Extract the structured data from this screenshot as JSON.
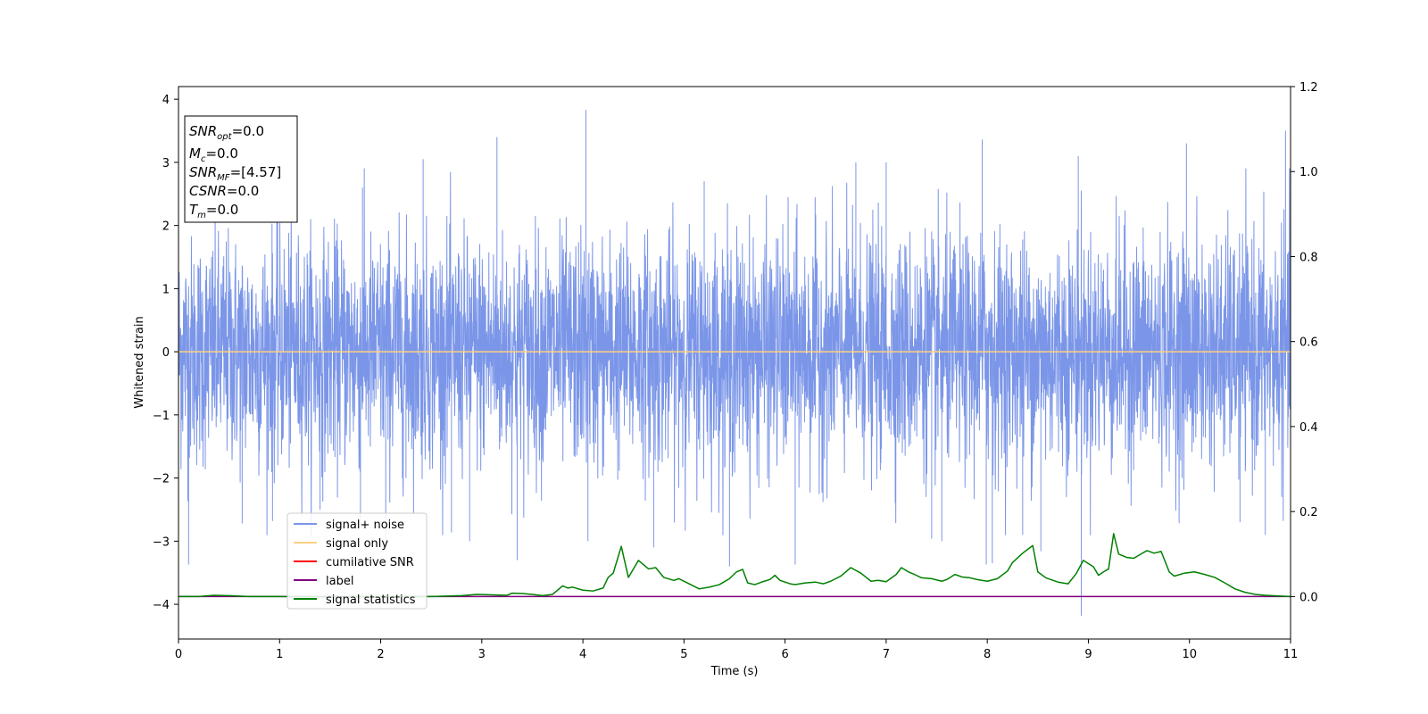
{
  "chart_data": {
    "type": "line",
    "xlabel": "Time (s)",
    "ylabel": "Whitened strain",
    "xlim": [
      0,
      11
    ],
    "ylim": [
      -4.55,
      4.2
    ],
    "ylim_right": [
      -0.1,
      1.2
    ],
    "x_ticks": [
      0,
      1,
      2,
      3,
      4,
      5,
      6,
      7,
      8,
      9,
      10,
      11
    ],
    "y_ticks": [
      -4,
      -3,
      -2,
      -1,
      0,
      1,
      2,
      3,
      4
    ],
    "y_ticks_right": [
      0.0,
      0.2,
      0.4,
      0.6,
      0.8,
      1.0,
      1.2
    ],
    "grid": false,
    "legend_position": "bottom-left",
    "legend": [
      {
        "label": "signal+ noise",
        "color": "#7b96e8"
      },
      {
        "label": "signal only",
        "color": "#ffd080"
      },
      {
        "label": "cumilative SNR",
        "color": "#ff0000"
      },
      {
        "label": "label",
        "color": "#800080"
      },
      {
        "label": "signal statistics",
        "color": "#008000"
      }
    ],
    "annotation": {
      "position": "top-left",
      "lines": [
        {
          "base": "SNR",
          "sub": "opt",
          "value": "=0.0"
        },
        {
          "base": "M",
          "sub": "c",
          "value": "=0.0"
        },
        {
          "base": "SNR",
          "sub": "MF",
          "value": "=[4.57]"
        },
        {
          "base": "CSNR",
          "sub": "",
          "value": "=0.0"
        },
        {
          "base": "T",
          "sub": "m",
          "value": "=0.0"
        }
      ]
    },
    "series": [
      {
        "name": "signal+ noise",
        "axis": "left",
        "color": "#7b96e8",
        "noise_std": 0.9,
        "peaks": [
          [
            0.1,
            -3.37
          ],
          [
            0.63,
            -2.72
          ],
          [
            0.93,
            -2.68
          ],
          [
            1.4,
            -2.5
          ],
          [
            1.8,
            -2.76
          ],
          [
            1.82,
            2.6
          ],
          [
            2.05,
            -3.15
          ],
          [
            2.25,
            -2.0
          ],
          [
            2.42,
            3.05
          ],
          [
            2.7,
            -2.86
          ],
          [
            2.88,
            -3.0
          ],
          [
            3.15,
            3.4
          ],
          [
            3.35,
            -3.3
          ],
          [
            4.03,
            3.83
          ],
          [
            4.05,
            -3.0
          ],
          [
            4.7,
            -3.1
          ],
          [
            5.2,
            2.7
          ],
          [
            5.45,
            -3.4
          ],
          [
            6.1,
            -3.37
          ],
          [
            6.7,
            3.0
          ],
          [
            7.0,
            3.0
          ],
          [
            7.45,
            -2.96
          ],
          [
            7.55,
            -3.0
          ],
          [
            7.95,
            3.36
          ],
          [
            7.99,
            -3.37
          ],
          [
            8.05,
            -3.35
          ],
          [
            8.35,
            -2.9
          ],
          [
            8.53,
            -3.16
          ],
          [
            8.9,
            3.1
          ],
          [
            8.93,
            -4.18
          ],
          [
            9.97,
            3.3
          ],
          [
            10.5,
            -2.7
          ],
          [
            10.75,
            -2.9
          ],
          [
            10.95,
            3.5
          ],
          [
            11.0,
            2.8
          ]
        ]
      },
      {
        "name": "signal only",
        "axis": "left",
        "color": "#ffd080",
        "x": [
          0,
          11
        ],
        "y": [
          0,
          0
        ]
      },
      {
        "name": "label",
        "axis": "right",
        "color": "#800080",
        "x": [
          0,
          11
        ],
        "y": [
          0.0,
          0.0
        ]
      },
      {
        "name": "signal statistics",
        "axis": "right",
        "color": "#008000",
        "x": [
          0,
          0.2,
          0.35,
          0.5,
          0.7,
          1.0,
          1.5,
          2.0,
          2.5,
          2.8,
          2.95,
          3.1,
          3.25,
          3.3,
          3.4,
          3.5,
          3.6,
          3.7,
          3.8,
          3.85,
          3.9,
          4.0,
          4.1,
          4.2,
          4.25,
          4.3,
          4.38,
          4.45,
          4.55,
          4.65,
          4.72,
          4.8,
          4.9,
          4.95,
          5.05,
          5.15,
          5.25,
          5.35,
          5.45,
          5.52,
          5.58,
          5.63,
          5.7,
          5.78,
          5.85,
          5.9,
          5.95,
          6.05,
          6.1,
          6.2,
          6.3,
          6.38,
          6.45,
          6.55,
          6.65,
          6.75,
          6.85,
          6.92,
          7.0,
          7.1,
          7.15,
          7.22,
          7.28,
          7.35,
          7.45,
          7.55,
          7.6,
          7.68,
          7.75,
          7.83,
          7.9,
          8.0,
          8.1,
          8.2,
          8.25,
          8.35,
          8.45,
          8.5,
          8.58,
          8.7,
          8.8,
          8.88,
          8.95,
          9.05,
          9.1,
          9.15,
          9.2,
          9.25,
          9.3,
          9.38,
          9.45,
          9.52,
          9.58,
          9.65,
          9.72,
          9.8,
          9.85,
          9.95,
          10.05,
          10.15,
          10.25,
          10.35,
          10.45,
          10.55,
          10.65,
          10.75,
          10.9,
          11.0
        ],
        "y": [
          0.0,
          0.0,
          0.003,
          0.002,
          0.0,
          0.0,
          -0.001,
          0.0,
          0.0,
          0.002,
          0.005,
          0.004,
          0.003,
          0.008,
          0.007,
          0.005,
          0.002,
          0.005,
          0.025,
          0.02,
          0.022,
          0.015,
          0.013,
          0.02,
          0.045,
          0.055,
          0.118,
          0.045,
          0.085,
          0.065,
          0.068,
          0.045,
          0.038,
          0.042,
          0.03,
          0.018,
          0.022,
          0.028,
          0.042,
          0.058,
          0.064,
          0.032,
          0.028,
          0.035,
          0.04,
          0.05,
          0.038,
          0.03,
          0.028,
          0.032,
          0.034,
          0.03,
          0.036,
          0.048,
          0.068,
          0.055,
          0.036,
          0.038,
          0.035,
          0.052,
          0.068,
          0.058,
          0.052,
          0.044,
          0.042,
          0.036,
          0.04,
          0.052,
          0.046,
          0.044,
          0.04,
          0.036,
          0.042,
          0.06,
          0.08,
          0.102,
          0.12,
          0.058,
          0.044,
          0.034,
          0.03,
          0.054,
          0.085,
          0.07,
          0.05,
          0.058,
          0.065,
          0.148,
          0.1,
          0.092,
          0.09,
          0.1,
          0.108,
          0.102,
          0.106,
          0.058,
          0.048,
          0.055,
          0.058,
          0.052,
          0.045,
          0.032,
          0.018,
          0.01,
          0.005,
          0.003,
          0.001,
          0.0
        ]
      }
    ]
  }
}
